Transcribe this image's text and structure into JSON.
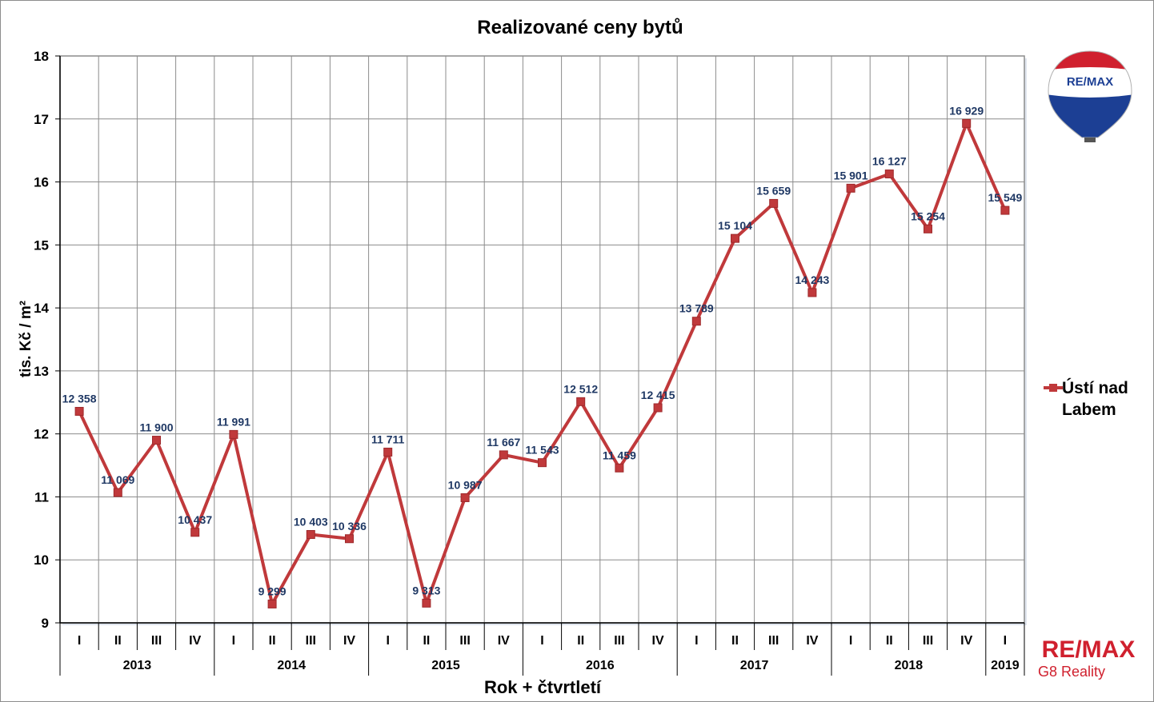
{
  "colors": {
    "series": "#c0393b",
    "marker": "#c0393b",
    "data_label": "#1f3864",
    "grid": "#8c8c8c",
    "text": "#000000",
    "remax_red": "#d0202e",
    "remax_blue": "#1c3f94"
  },
  "branding": {
    "logo_balloon_text": "RE/MAX",
    "logo_word": "RE/MAX",
    "logo_subtitle": "G8 Reality"
  },
  "chart_data": {
    "type": "line",
    "title": "Realizované ceny bytů",
    "xlabel": "Rok + čtvrtletí",
    "ylabel": "tis. Kč / m²",
    "ylim": [
      9,
      18
    ],
    "yticks": [
      9,
      10,
      11,
      12,
      13,
      14,
      15,
      16,
      17,
      18
    ],
    "grid": true,
    "legend_position": "right",
    "quarters": [
      "I",
      "II",
      "III",
      "IV",
      "I",
      "II",
      "III",
      "IV",
      "I",
      "II",
      "III",
      "IV",
      "I",
      "II",
      "III",
      "IV",
      "I",
      "II",
      "III",
      "IV",
      "I",
      "II",
      "III",
      "IV",
      "I"
    ],
    "years": [
      {
        "label": "2013",
        "count": 4
      },
      {
        "label": "2014",
        "count": 4
      },
      {
        "label": "2015",
        "count": 4
      },
      {
        "label": "2016",
        "count": 4
      },
      {
        "label": "2017",
        "count": 4
      },
      {
        "label": "2018",
        "count": 4
      },
      {
        "label": "2019",
        "count": 1
      }
    ],
    "series": [
      {
        "name": "Ústí nad Labem",
        "values": [
          12.358,
          11.069,
          11.9,
          10.437,
          11.991,
          9.299,
          10.403,
          10.336,
          11.711,
          9.313,
          10.987,
          11.667,
          11.543,
          12.512,
          11.459,
          12.415,
          13.789,
          15.104,
          15.659,
          14.243,
          15.901,
          16.127,
          15.254,
          16.929,
          15.549
        ],
        "labels": [
          "12 358",
          "11 069",
          "11 900",
          "10 437",
          "11 991",
          "9 299",
          "10 403",
          "10 336",
          "11 711",
          "9 313",
          "10 987",
          "11 667",
          "11 543",
          "12 512",
          "11 459",
          "12 415",
          "13 789",
          "15 104",
          "15 659",
          "14 243",
          "15 901",
          "16 127",
          "15 254",
          "16 929",
          "15 549"
        ]
      }
    ]
  }
}
